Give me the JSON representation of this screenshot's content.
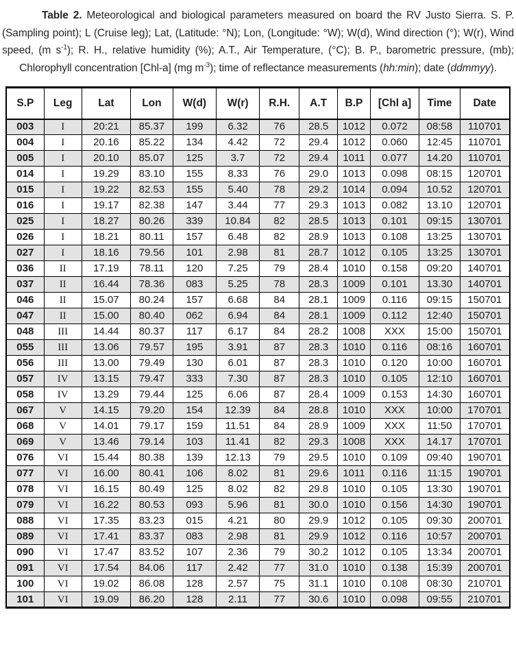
{
  "caption": {
    "segments": [
      {
        "text": "Table 2. ",
        "style": "bold"
      },
      {
        "text": "Meteorological and biological parameters measured on board the RV Justo Sierra. S. P. (Sampling point); L (Cruise leg); Lat, (Latitude: °N); Lon, (Longitude: °W); W(d), Wind direction (°); W(r), Wind speed, (m s",
        "style": ""
      },
      {
        "text": "-1",
        "style": "sup"
      },
      {
        "text": "); R. H., relative humidity (%); A.T., Air Temperature, (°C); B. P., barometric pressure, (mb); Chlorophyll concentration [Chl-a] (mg m",
        "style": ""
      },
      {
        "text": "-3",
        "style": "sup"
      },
      {
        "text": "); time of reflectance measurements (",
        "style": ""
      },
      {
        "text": "hh:min",
        "style": "italic"
      },
      {
        "text": "); date (",
        "style": ""
      },
      {
        "text": "ddmmyy",
        "style": "italic"
      },
      {
        "text": ").",
        "style": ""
      }
    ]
  },
  "table": {
    "headers": [
      "S.P",
      "Leg",
      "Lat",
      "Lon",
      "W(d)",
      "W(r)",
      "R.H.",
      "A.T",
      "B.P",
      "[Chl a]",
      "Time",
      "Date"
    ],
    "rows": [
      [
        "003",
        "I",
        "20:21",
        "85.37",
        "199",
        "6.32",
        "76",
        "28.5",
        "1012",
        "0.072",
        "08:58",
        "110701"
      ],
      [
        "004",
        "I",
        "20.16",
        "85.22",
        "134",
        "4.42",
        "72",
        "29.4",
        "1012",
        "0.060",
        "12:45",
        "110701"
      ],
      [
        "005",
        "I",
        "20.10",
        "85.07",
        "125",
        "3.7",
        "72",
        "29.4",
        "1011",
        "0.077",
        "14.20",
        "110701"
      ],
      [
        "014",
        "I",
        "19.29",
        "83.10",
        "155",
        "8.33",
        "76",
        "29.0",
        "1013",
        "0.098",
        "08:15",
        "120701"
      ],
      [
        "015",
        "I",
        "19.22",
        "82.53",
        "155",
        "5.40",
        "78",
        "29.2",
        "1014",
        "0.094",
        "10.52",
        "120701"
      ],
      [
        "016",
        "I",
        "19.17",
        "82.38",
        "147",
        "3.44",
        "77",
        "29.3",
        "1013",
        "0.082",
        "13.10",
        "120701"
      ],
      [
        "025",
        "I",
        "18.27",
        "80.26",
        "339",
        "10.84",
        "82",
        "28.5",
        "1013",
        "0.101",
        "09:15",
        "130701"
      ],
      [
        "026",
        "I",
        "18.21",
        "80.11",
        "157",
        "6.48",
        "82",
        "28.9",
        "1013",
        "0.108",
        "13:25",
        "130701"
      ],
      [
        "027",
        "I",
        "18.16",
        "79.56",
        "101",
        "2.98",
        "81",
        "28.7",
        "1012",
        "0.105",
        "13:25",
        "130701"
      ],
      [
        "036",
        "II",
        "17.19",
        "78.11",
        "120",
        "7.25",
        "79",
        "28.4",
        "1010",
        "0.158",
        "09:20",
        "140701"
      ],
      [
        "037",
        "II",
        "16.44",
        "78.36",
        "083",
        "5.25",
        "78",
        "28.3",
        "1009",
        "0.101",
        "13.30",
        "140701"
      ],
      [
        "046",
        "II",
        "15.07",
        "80.24",
        "157",
        "6.68",
        "84",
        "28.1",
        "1009",
        "0.116",
        "09:15",
        "150701"
      ],
      [
        "047",
        "II",
        "15.00",
        "80.40",
        "062",
        "6.94",
        "84",
        "28.1",
        "1009",
        "0.112",
        "12:40",
        "150701"
      ],
      [
        "048",
        "III",
        "14.44",
        "80.37",
        "117",
        "6.17",
        "84",
        "28.2",
        "1008",
        "XXX",
        "15:00",
        "150701"
      ],
      [
        "055",
        "III",
        "13.06",
        "79.57",
        "195",
        "3.91",
        "87",
        "28.3",
        "1010",
        "0.116",
        "08:16",
        "160701"
      ],
      [
        "056",
        "III",
        "13.00",
        "79.49",
        "130",
        "6.01",
        "87",
        "28.3",
        "1010",
        "0.120",
        "10:00",
        "160701"
      ],
      [
        "057",
        "IV",
        "13.15",
        "79.47",
        "333",
        "7.30",
        "87",
        "28.3",
        "1010",
        "0.105",
        "12:10",
        "160701"
      ],
      [
        "058",
        "IV",
        "13.29",
        "79.44",
        "125",
        "6.06",
        "87",
        "28.4",
        "1009",
        "0.153",
        "14:30",
        "160701"
      ],
      [
        "067",
        "V",
        "14.15",
        "79.20",
        "154",
        "12.39",
        "84",
        "28.8",
        "1010",
        "XXX",
        "10:00",
        "170701"
      ],
      [
        "068",
        "V",
        "14.01",
        "79.17",
        "159",
        "11.51",
        "84",
        "28.9",
        "1009",
        "XXX",
        "11:50",
        "170701"
      ],
      [
        "069",
        "V",
        "13.46",
        "79.14",
        "103",
        "11.41",
        "82",
        "29.3",
        "1008",
        "XXX",
        "14.17",
        "170701"
      ],
      [
        "076",
        "VI",
        "15.44",
        "80.38",
        "139",
        "12.13",
        "79",
        "29.5",
        "1010",
        "0.109",
        "09:40",
        "190701"
      ],
      [
        "077",
        "VI",
        "16.00",
        "80.41",
        "106",
        "8.02",
        "81",
        "29.6",
        "1011",
        "0.116",
        "11:15",
        "190701"
      ],
      [
        "078",
        "VI",
        "16.15",
        "80.49",
        "125",
        "8.02",
        "82",
        "29.8",
        "1010",
        "0.105",
        "13:30",
        "190701"
      ],
      [
        "079",
        "VI",
        "16.22",
        "80.53",
        "093",
        "5.96",
        "81",
        "30.0",
        "1010",
        "0.156",
        "14:30",
        "190701"
      ],
      [
        "088",
        "VI",
        "17.35",
        "83.23",
        "015",
        "4.21",
        "80",
        "29.9",
        "1012",
        "0.105",
        "09:30",
        "200701"
      ],
      [
        "089",
        "VI",
        "17.41",
        "83.37",
        "083",
        "2.98",
        "81",
        "29.9",
        "1012",
        "0.116",
        "10:57",
        "200701"
      ],
      [
        "090",
        "VI",
        "17.47",
        "83.52",
        "107",
        "2.36",
        "79",
        "30.2",
        "1012",
        "0.105",
        "13:34",
        "200701"
      ],
      [
        "091",
        "VI",
        "17.54",
        "84.06",
        "117",
        "2.42",
        "77",
        "31.0",
        "1010",
        "0.138",
        "15:39",
        "200701"
      ],
      [
        "100",
        "VI",
        "19.02",
        "86.08",
        "128",
        "2.57",
        "75",
        "31.1",
        "1010",
        "0.108",
        "08:30",
        "210701"
      ],
      [
        "101",
        "VI",
        "19.09",
        "86.20",
        "128",
        "2.11",
        "77",
        "30.6",
        "1010",
        "0.098",
        "09:55",
        "210701"
      ]
    ]
  },
  "colors": {
    "row_shade": "#e3e3e3",
    "border": "#000000",
    "text": "#1c1c1c"
  }
}
